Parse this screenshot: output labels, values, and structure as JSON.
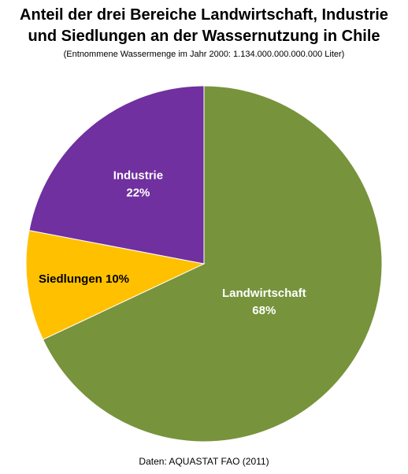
{
  "chart_data": {
    "type": "pie",
    "title_line1": "Anteil der drei Bereiche Landwirtschaft, Industrie",
    "title_line2": "und Siedlungen an der Wassernutzung in Chile",
    "subtitle": "(Entnommene Wassermenge im Jahr 2000: 1.134.000.000.000.000 Liter)",
    "source": "Daten: AQUASTAT FAO (2011)",
    "slices": [
      {
        "category": "Landwirtschaft",
        "value": 68,
        "label_line1": "Landwirtschaft",
        "label_line2": "68%",
        "color": "#77933C",
        "label_color": "#FFFFFF"
      },
      {
        "category": "Siedlungen",
        "value": 10,
        "label_line1": "Siedlungen 10%",
        "label_line2": "",
        "color": "#FFC000",
        "label_color": "#000000"
      },
      {
        "category": "Industrie",
        "value": 22,
        "label_line1": "Industrie",
        "label_line2": "22%",
        "color": "#7030A0",
        "label_color": "#FFFFFF"
      }
    ],
    "start_angle": "12 o'clock",
    "direction": "clockwise",
    "legend": "none"
  }
}
